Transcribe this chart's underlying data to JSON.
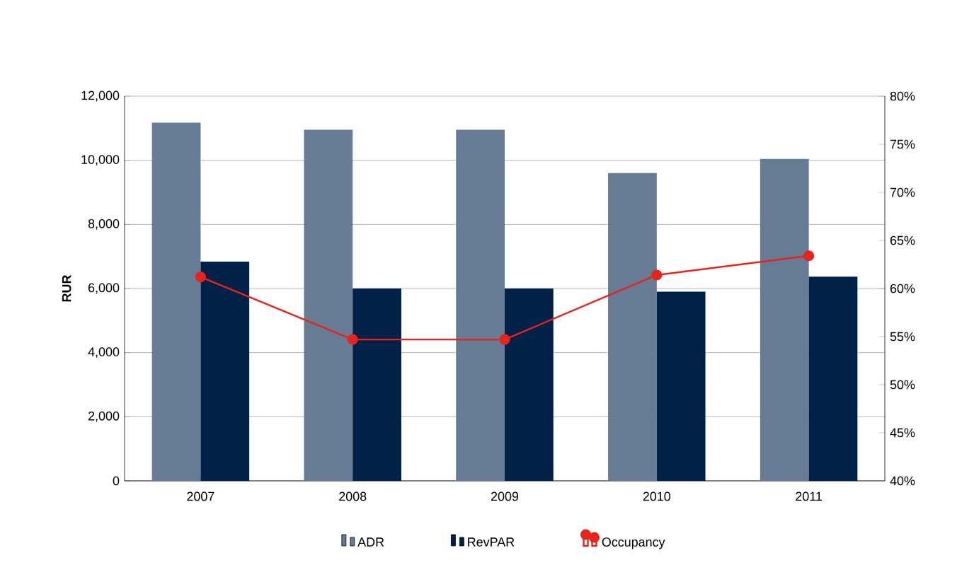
{
  "chart_data": {
    "type": "bar",
    "ylabel": "**RUR**",
    "categories": [
      "2007",
      "2008",
      "2009",
      "2010",
      "2011"
    ],
    "series": [
      {
        "name": "ADR",
        "color": "#667b94",
        "values": [
          11170,
          10950,
          10950,
          9600,
          10040
        ]
      },
      {
        "name": "RevPAR",
        "color": "#002147",
        "values": [
          6840,
          6000,
          6000,
          5900,
          6370
        ]
      },
      {
        "name": "Occupancy",
        "type": "line",
        "axis": "y2",
        "color": "#e8231c",
        "marker": "circle",
        "values": [
          61.2,
          54.7,
          54.7,
          61.4,
          63.4
        ]
      }
    ],
    "ylim": [
      0,
      12000
    ],
    "yticks": [
      {
        "value": 0,
        "label": "0"
      },
      {
        "value": 2000,
        "label": "2,000"
      },
      {
        "value": 4000,
        "label": "4,000"
      },
      {
        "value": 6000,
        "label": "6,000"
      },
      {
        "value": 8000,
        "label": "8,000"
      },
      {
        "value": 10000,
        "label": "10,000"
      },
      {
        "value": 12000,
        "label": "12,000"
      }
    ],
    "y2lim": [
      40,
      80
    ],
    "y2ticks": [
      {
        "value": 40,
        "label": "40%"
      },
      {
        "value": 45,
        "label": "45%"
      },
      {
        "value": 50,
        "label": "50%"
      },
      {
        "value": 55,
        "label": "55%"
      },
      {
        "value": 60,
        "label": "60%"
      },
      {
        "value": 65,
        "label": "65%"
      },
      {
        "value": 70,
        "label": "70%"
      },
      {
        "value": 75,
        "label": "75%"
      },
      {
        "value": 80,
        "label": "80%"
      }
    ],
    "grid": "y",
    "legend": "bottom"
  }
}
